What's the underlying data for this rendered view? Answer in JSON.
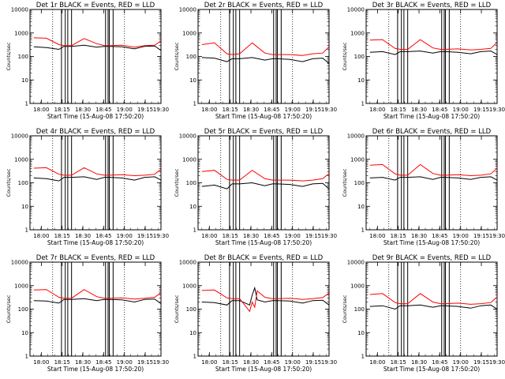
{
  "chart_data": [
    {
      "type": "line",
      "title": "Det 1r BLACK = Events, RED = LLD",
      "xlabel": "Start Time (15-Aug-08 17:50:20)",
      "ylabel": "Counts/sec",
      "x_ticks": [
        "18:00",
        "18:15",
        "18:30",
        "18:45",
        "19:00",
        "19:15",
        "19:30"
      ],
      "y_ticks": [
        "1",
        "10",
        "100",
        "1000",
        "10000"
      ],
      "ylim": [
        1,
        10000
      ],
      "y_scale": "log",
      "xlim_min": [
        -2,
        102
      ],
      "series": [
        {
          "name": "Events",
          "color": "#000000",
          "x": [
            0,
            10,
            20,
            24,
            30,
            40,
            50,
            56,
            60,
            70,
            80,
            88,
            96,
            101
          ],
          "y": [
            260,
            240,
            200,
            270,
            270,
            300,
            250,
            270,
            270,
            260,
            210,
            270,
            280,
            180
          ]
        },
        {
          "name": "LLD",
          "color": "#ff0000",
          "x": [
            0,
            10,
            20,
            24,
            30,
            40,
            50,
            56,
            60,
            70,
            80,
            88,
            96,
            101
          ],
          "y": [
            620,
            600,
            320,
            290,
            290,
            580,
            350,
            290,
            290,
            300,
            250,
            290,
            300,
            460
          ]
        }
      ]
    },
    {
      "type": "line",
      "title": "Det 2r BLACK = Events, RED = LLD",
      "xlabel": "Start Time (15-Aug-08 17:50:20)",
      "ylabel": "Counts/sec",
      "x_ticks": [
        "18:00",
        "18:15",
        "18:30",
        "18:45",
        "19:00",
        "19:15",
        "19:30"
      ],
      "y_ticks": [
        "1",
        "10",
        "100",
        "1000",
        "10000"
      ],
      "ylim": [
        1,
        10000
      ],
      "y_scale": "log",
      "xlim_min": [
        -2,
        102
      ],
      "series": [
        {
          "name": "Events",
          "color": "#000000",
          "x": [
            0,
            10,
            20,
            24,
            30,
            40,
            50,
            56,
            60,
            70,
            80,
            88,
            96,
            101
          ],
          "y": [
            90,
            85,
            60,
            80,
            80,
            90,
            70,
            80,
            80,
            75,
            60,
            80,
            85,
            50
          ]
        },
        {
          "name": "LLD",
          "color": "#ff0000",
          "x": [
            0,
            10,
            20,
            24,
            30,
            40,
            50,
            56,
            60,
            70,
            80,
            88,
            96,
            101
          ],
          "y": [
            320,
            380,
            130,
            120,
            130,
            380,
            140,
            120,
            120,
            120,
            110,
            130,
            140,
            260
          ]
        }
      ]
    },
    {
      "type": "line",
      "title": "Det 3r BLACK = Events, RED = LLD",
      "xlabel": "Start Time (15-Aug-08 17:50:20)",
      "ylabel": "Counts/sec",
      "x_ticks": [
        "18:00",
        "18:15",
        "18:30",
        "18:45",
        "19:00",
        "19:15",
        "19:30"
      ],
      "y_ticks": [
        "1",
        "10",
        "100",
        "1000",
        "10000"
      ],
      "ylim": [
        1,
        10000
      ],
      "y_scale": "log",
      "xlim_min": [
        -2,
        102
      ],
      "series": [
        {
          "name": "Events",
          "color": "#000000",
          "x": [
            0,
            10,
            20,
            24,
            30,
            40,
            50,
            56,
            60,
            70,
            80,
            88,
            96,
            101
          ],
          "y": [
            150,
            160,
            120,
            160,
            160,
            170,
            140,
            160,
            160,
            150,
            130,
            160,
            170,
            120
          ]
        },
        {
          "name": "LLD",
          "color": "#ff0000",
          "x": [
            0,
            10,
            20,
            24,
            30,
            40,
            50,
            56,
            60,
            70,
            80,
            88,
            96,
            101
          ],
          "y": [
            500,
            520,
            220,
            200,
            200,
            520,
            230,
            200,
            200,
            210,
            190,
            200,
            220,
            400
          ]
        }
      ]
    },
    {
      "type": "line",
      "title": "Det 4r BLACK = Events, RED = LLD",
      "xlabel": "Start Time (15-Aug-08 17:50:20)",
      "ylabel": "Counts/sec",
      "x_ticks": [
        "18:00",
        "18:15",
        "18:30",
        "18:45",
        "19:00",
        "19:15",
        "19:30"
      ],
      "y_ticks": [
        "1",
        "10",
        "100",
        "1000",
        "10000"
      ],
      "ylim": [
        1,
        10000
      ],
      "y_scale": "log",
      "xlim_min": [
        -2,
        102
      ],
      "series": [
        {
          "name": "Events",
          "color": "#000000",
          "x": [
            0,
            10,
            20,
            24,
            30,
            40,
            50,
            56,
            60,
            70,
            80,
            88,
            96,
            101
          ],
          "y": [
            160,
            150,
            120,
            170,
            170,
            180,
            140,
            170,
            170,
            160,
            130,
            170,
            180,
            130
          ]
        },
        {
          "name": "LLD",
          "color": "#ff0000",
          "x": [
            0,
            10,
            20,
            24,
            30,
            40,
            50,
            56,
            60,
            70,
            80,
            88,
            96,
            101
          ],
          "y": [
            420,
            440,
            230,
            210,
            210,
            440,
            240,
            210,
            210,
            220,
            200,
            210,
            230,
            380
          ]
        }
      ]
    },
    {
      "type": "line",
      "title": "Det 5r BLACK = Events, RED = LLD",
      "xlabel": "Start Time (15-Aug-08 17:50:20)",
      "ylabel": "Counts/sec",
      "x_ticks": [
        "18:00",
        "18:15",
        "18:30",
        "18:45",
        "19:00",
        "19:15",
        "19:30"
      ],
      "y_ticks": [
        "1",
        "10",
        "100",
        "1000",
        "10000"
      ],
      "ylim": [
        1,
        10000
      ],
      "y_scale": "log",
      "xlim_min": [
        -2,
        102
      ],
      "series": [
        {
          "name": "Events",
          "color": "#000000",
          "x": [
            0,
            10,
            20,
            24,
            30,
            40,
            50,
            56,
            60,
            70,
            80,
            88,
            96,
            101
          ],
          "y": [
            70,
            80,
            55,
            90,
            90,
            100,
            75,
            90,
            90,
            85,
            70,
            90,
            95,
            55
          ]
        },
        {
          "name": "LLD",
          "color": "#ff0000",
          "x": [
            0,
            10,
            20,
            24,
            30,
            40,
            50,
            56,
            60,
            70,
            80,
            88,
            96,
            101
          ],
          "y": [
            300,
            340,
            140,
            130,
            130,
            340,
            150,
            130,
            130,
            130,
            120,
            130,
            150,
            250
          ]
        }
      ]
    },
    {
      "type": "line",
      "title": "Det 6r BLACK = Events, RED = LLD",
      "xlabel": "Start Time (15-Aug-08 17:50:20)",
      "ylabel": "Counts/sec",
      "x_ticks": [
        "18:00",
        "18:15",
        "18:30",
        "18:45",
        "19:00",
        "19:15",
        "19:30"
      ],
      "y_ticks": [
        "1",
        "10",
        "100",
        "1000",
        "10000"
      ],
      "ylim": [
        1,
        10000
      ],
      "y_scale": "log",
      "xlim_min": [
        -2,
        102
      ],
      "series": [
        {
          "name": "Events",
          "color": "#000000",
          "x": [
            0,
            10,
            20,
            24,
            30,
            40,
            50,
            56,
            60,
            70,
            80,
            88,
            96,
            101
          ],
          "y": [
            160,
            170,
            130,
            170,
            170,
            180,
            140,
            170,
            170,
            160,
            140,
            170,
            180,
            130
          ]
        },
        {
          "name": "LLD",
          "color": "#ff0000",
          "x": [
            0,
            10,
            20,
            24,
            30,
            40,
            50,
            56,
            60,
            70,
            80,
            88,
            96,
            101
          ],
          "y": [
            560,
            600,
            240,
            210,
            210,
            600,
            250,
            210,
            210,
            220,
            200,
            210,
            240,
            420
          ]
        }
      ]
    },
    {
      "type": "line",
      "title": "Det 7r BLACK = Events, RED = LLD",
      "xlabel": "Start Time (15-Aug-08 17:50:20)",
      "ylabel": "Counts/sec",
      "x_ticks": [
        "18:00",
        "18:15",
        "18:30",
        "18:45",
        "19:00",
        "19:15",
        "19:30"
      ],
      "y_ticks": [
        "1",
        "10",
        "100",
        "1000",
        "10000"
      ],
      "ylim": [
        1,
        10000
      ],
      "y_scale": "log",
      "xlim_min": [
        -2,
        102
      ],
      "series": [
        {
          "name": "Events",
          "color": "#000000",
          "x": [
            0,
            10,
            20,
            24,
            30,
            40,
            50,
            56,
            60,
            70,
            80,
            88,
            96,
            101
          ],
          "y": [
            230,
            220,
            180,
            260,
            260,
            280,
            230,
            260,
            260,
            250,
            200,
            260,
            270,
            170
          ]
        },
        {
          "name": "LLD",
          "color": "#ff0000",
          "x": [
            0,
            10,
            20,
            24,
            30,
            40,
            50,
            56,
            60,
            70,
            80,
            88,
            96,
            101
          ],
          "y": [
            650,
            680,
            320,
            290,
            290,
            680,
            340,
            290,
            290,
            300,
            270,
            290,
            320,
            500
          ]
        }
      ]
    },
    {
      "type": "line",
      "title": "Det 8r BLACK = Events, RED = LLD",
      "xlabel": "Start Time (15-Aug-08 17:50:20)",
      "ylabel": "Counts/sec",
      "x_ticks": [
        "18:00",
        "18:15",
        "18:30",
        "18:45",
        "19:00",
        "19:15",
        "19:30"
      ],
      "y_ticks": [
        "1",
        "10",
        "100",
        "1000",
        "10000"
      ],
      "ylim": [
        1,
        10000
      ],
      "y_scale": "log",
      "xlim_min": [
        -2,
        102
      ],
      "series": [
        {
          "name": "Events",
          "color": "#000000",
          "x": [
            0,
            10,
            20,
            24,
            30,
            38,
            40,
            42,
            44,
            50,
            56,
            60,
            70,
            80,
            88,
            96,
            101
          ],
          "y": [
            200,
            190,
            150,
            230,
            230,
            150,
            400,
            800,
            250,
            200,
            230,
            230,
            220,
            180,
            230,
            240,
            150
          ]
        },
        {
          "name": "LLD",
          "color": "#ff0000",
          "x": [
            0,
            10,
            20,
            24,
            30,
            38,
            40,
            42,
            44,
            50,
            56,
            60,
            70,
            80,
            88,
            96,
            101
          ],
          "y": [
            620,
            650,
            300,
            280,
            280,
            80,
            200,
            120,
            600,
            320,
            280,
            280,
            290,
            260,
            280,
            310,
            480
          ]
        }
      ]
    },
    {
      "type": "line",
      "title": "Det 9r BLACK = Events, RED = LLD",
      "xlabel": "Start Time (15-Aug-08 17:50:20)",
      "ylabel": "Counts/sec",
      "x_ticks": [
        "18:00",
        "18:15",
        "18:30",
        "18:45",
        "19:00",
        "19:15",
        "19:30"
      ],
      "y_ticks": [
        "1",
        "10",
        "100",
        "1000",
        "10000"
      ],
      "ylim": [
        1,
        10000
      ],
      "y_scale": "log",
      "xlim_min": [
        -2,
        102
      ],
      "series": [
        {
          "name": "Events",
          "color": "#000000",
          "x": [
            0,
            10,
            20,
            24,
            30,
            40,
            50,
            56,
            60,
            70,
            80,
            88,
            96,
            101
          ],
          "y": [
            130,
            140,
            100,
            140,
            140,
            150,
            120,
            140,
            140,
            130,
            110,
            140,
            150,
            100
          ]
        },
        {
          "name": "LLD",
          "color": "#ff0000",
          "x": [
            0,
            10,
            20,
            24,
            30,
            40,
            50,
            56,
            60,
            70,
            80,
            88,
            96,
            101
          ],
          "y": [
            420,
            460,
            190,
            170,
            170,
            460,
            200,
            170,
            170,
            180,
            160,
            170,
            190,
            330
          ]
        }
      ]
    }
  ]
}
